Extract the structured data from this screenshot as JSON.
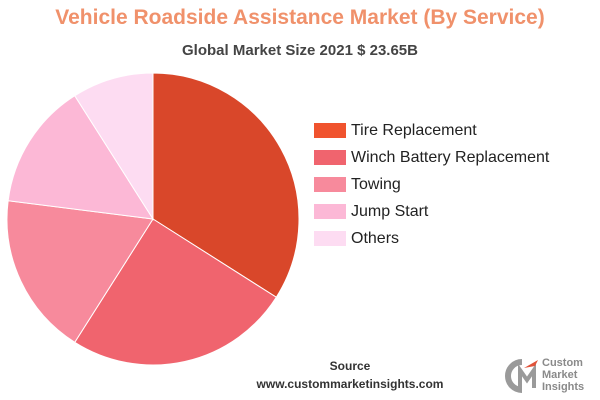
{
  "header": {
    "title": "Vehicle Roadside Assistance  Market (By Service)",
    "subtitle": "Global Market Size 2021 $ 23.65B"
  },
  "chart_data": {
    "type": "pie",
    "title": "Vehicle Roadside Assistance  Market (By Service)",
    "subtitle": "Global Market Size 2021 $ 23.65B",
    "categories": [
      "Tire Replacement",
      "Winch Battery Replacement",
      "Towing",
      "Jump Start",
      "Others"
    ],
    "values": [
      34,
      25,
      18,
      14,
      9
    ],
    "unit": "%",
    "start_angle_deg": 0,
    "direction": "clockwise",
    "colors": [
      "#d9472a",
      "#f0646e",
      "#f78a9c",
      "#fcb8d6",
      "#fddcf2"
    ],
    "legend_position": "right",
    "data_labels": false
  },
  "legend": {
    "items": [
      {
        "label": "Tire Replacement",
        "color": "#f0532e"
      },
      {
        "label": "Winch Battery Replacement",
        "color": "#f0646e"
      },
      {
        "label": "Towing",
        "color": "#f78a9c"
      },
      {
        "label": "Jump Start",
        "color": "#fcb8d6"
      },
      {
        "label": "Others",
        "color": "#fddcf2"
      }
    ]
  },
  "footer": {
    "source_label": "Source",
    "source_url": "www.custommarketinsights.com"
  },
  "logo": {
    "line1": "Custom",
    "line2": "Market",
    "line3": "Insights",
    "mark_color": "#9a9a9a",
    "accent_color": "#e0533a"
  }
}
